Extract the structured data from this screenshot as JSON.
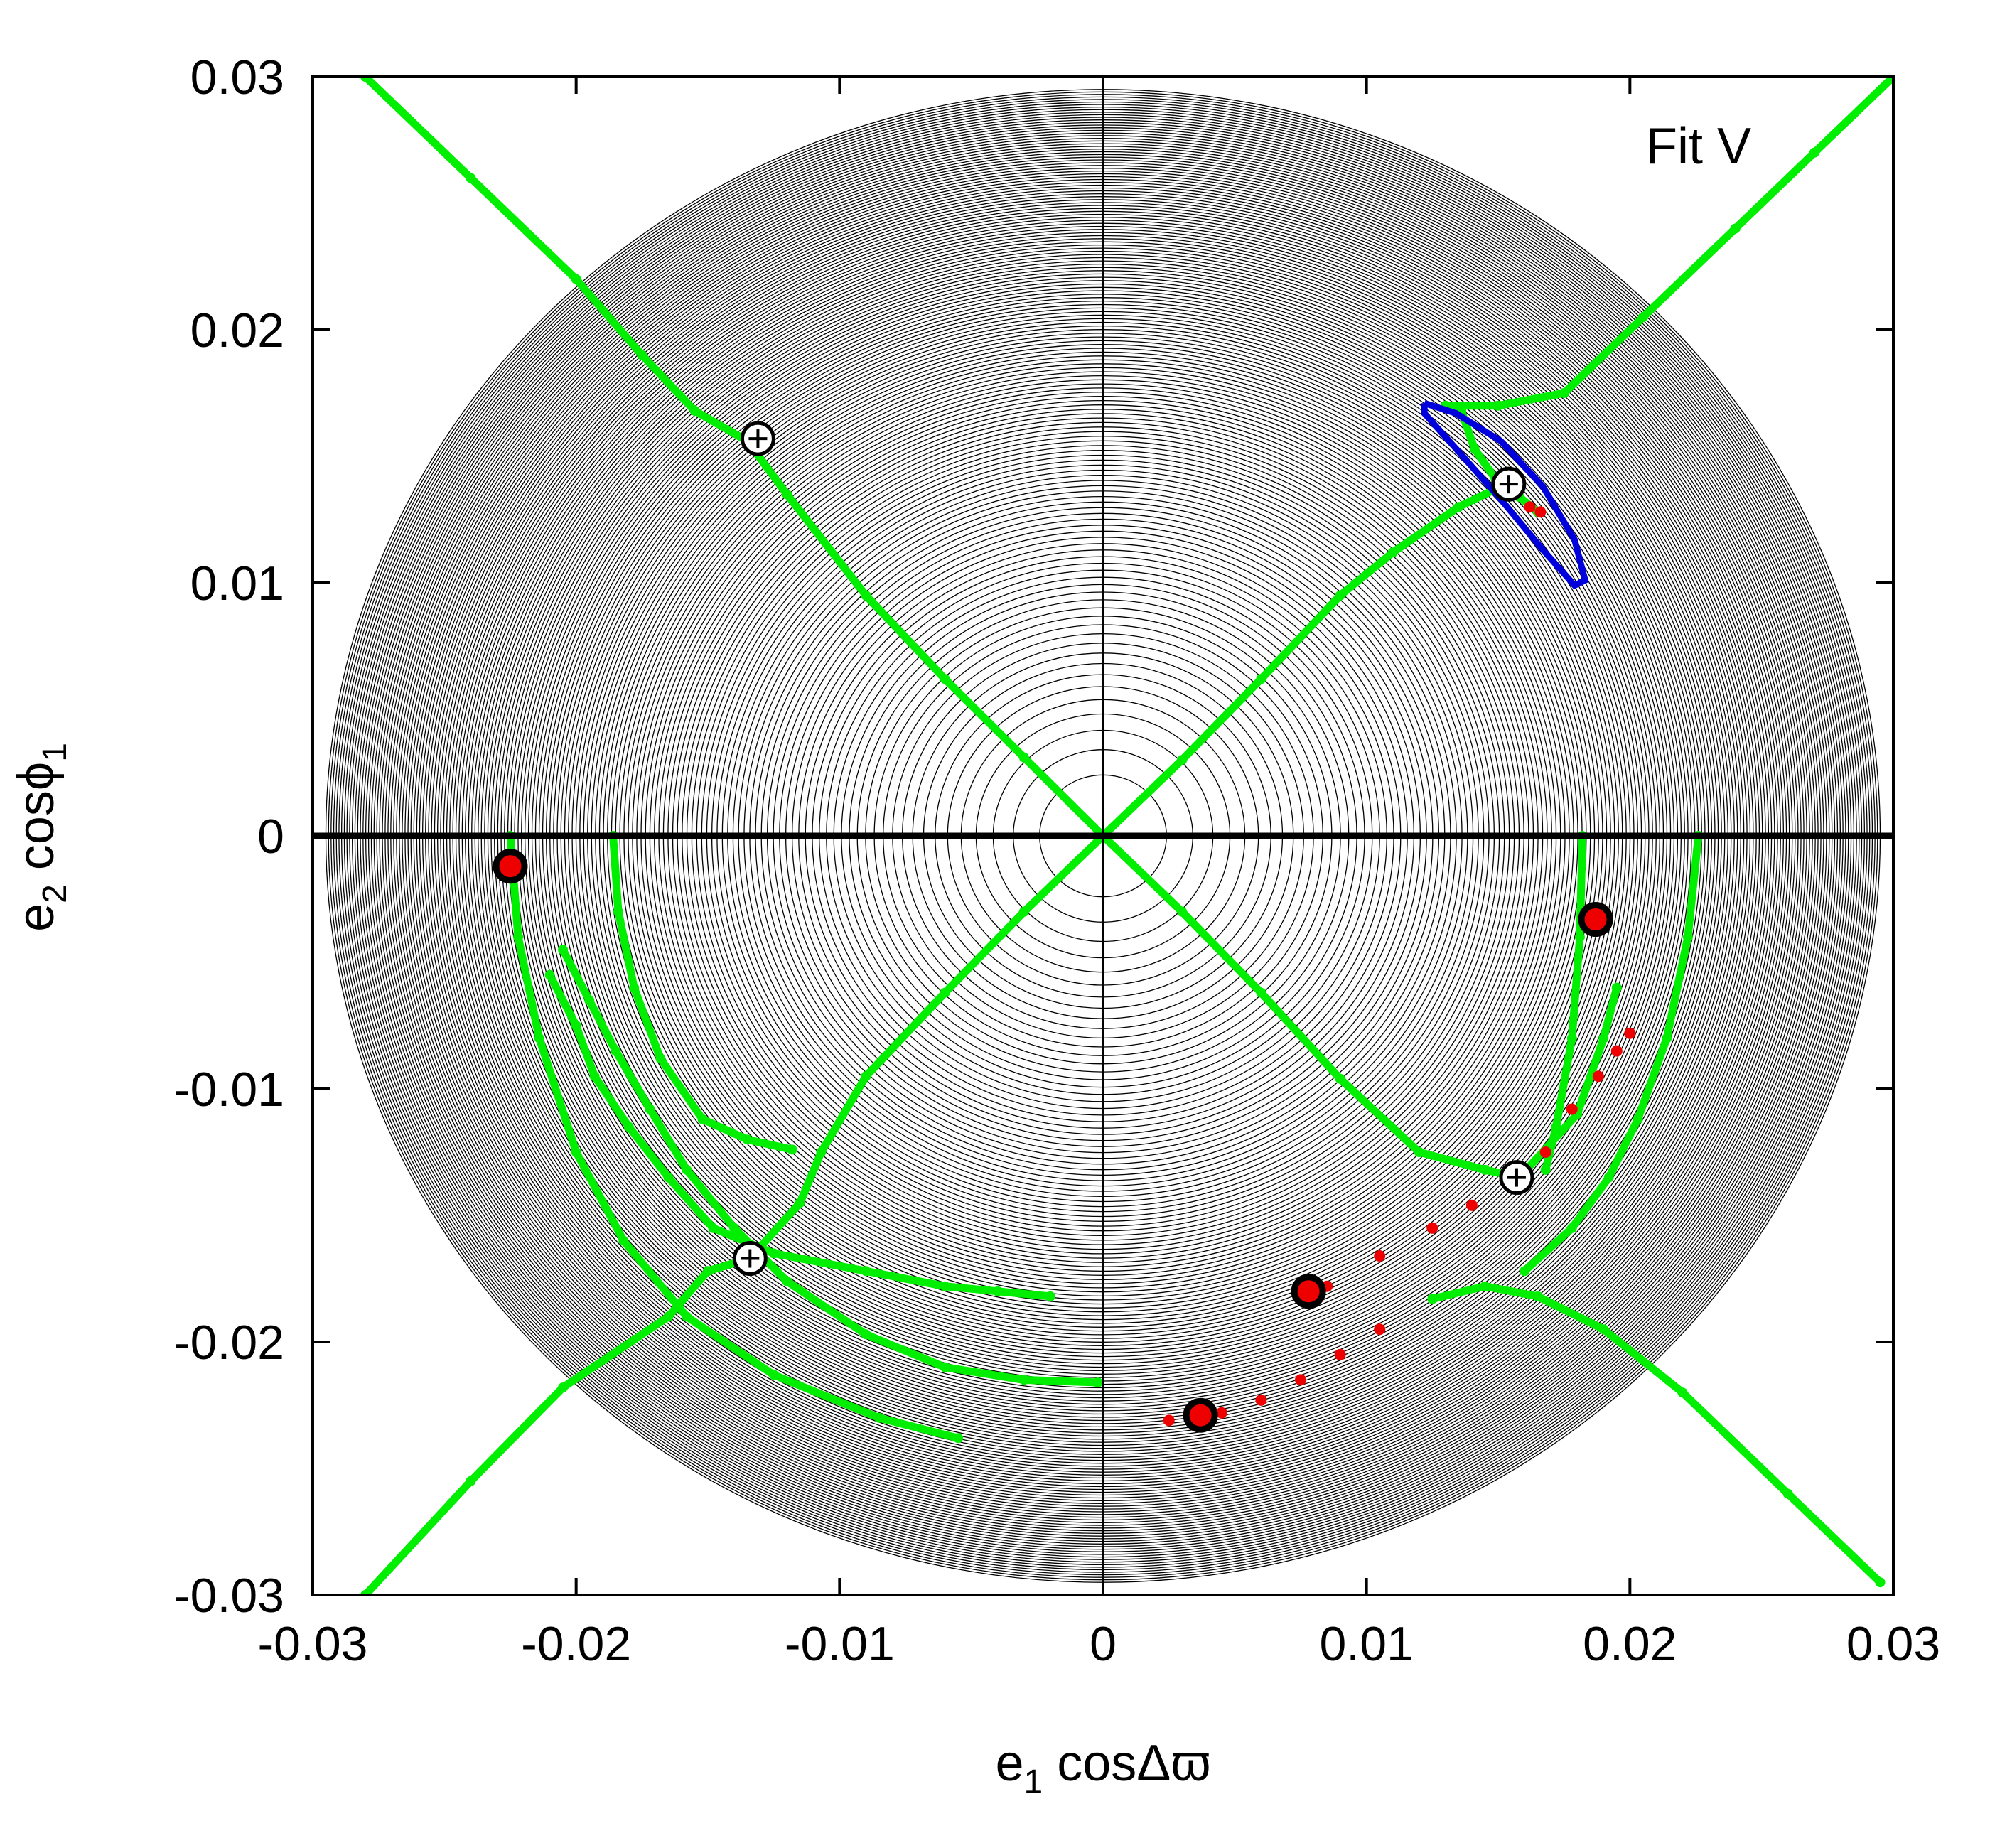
{
  "chart_data": {
    "type": "scatter",
    "annotation": "Fit V",
    "xlabel": {
      "main": "e",
      "sub": "1",
      "rest": " cosΔϖ"
    },
    "ylabel": {
      "main": "e",
      "sub": "2",
      "rest": " cosϕ",
      "sub2": "1"
    },
    "xlim": [
      -0.03,
      0.03
    ],
    "ylim": [
      -0.03,
      0.03
    ],
    "xticks": [
      -0.03,
      -0.02,
      -0.01,
      0,
      0.01,
      0.02,
      0.03
    ],
    "yticks": [
      -0.03,
      -0.02,
      -0.01,
      0,
      0.01,
      0.02,
      0.03
    ],
    "xtick_labels": [
      "-0.03",
      "-0.02",
      "-0.01",
      "0",
      "0.01",
      "0.02",
      "0.03"
    ],
    "ytick_labels": [
      "-0.03",
      "-0.02",
      "-0.01",
      "0",
      "0.01",
      "0.02",
      "0.03"
    ],
    "grid": false,
    "colors": {
      "contour": "#000000",
      "green": "#00ee00",
      "blue": "#0000dd",
      "red": "#ee0000"
    },
    "contour_disk_radius": 0.0295,
    "series": [
      {
        "color": "green",
        "style": "dots",
        "points": [
          [
            -0.028,
            0.03
          ],
          [
            -0.024,
            0.026
          ],
          [
            -0.02,
            0.022
          ],
          [
            -0.0175,
            0.019
          ],
          [
            -0.0155,
            0.0168
          ],
          [
            -0.0135,
            0.0156
          ],
          [
            -0.012,
            0.0135
          ],
          [
            -0.009,
            0.0095
          ],
          [
            -0.006,
            0.0062
          ],
          [
            -0.003,
            0.0031
          ],
          [
            0,
            0
          ],
          [
            0.003,
            -0.003
          ],
          [
            0.006,
            -0.0062
          ],
          [
            0.009,
            -0.0096
          ],
          [
            0.012,
            -0.0125
          ],
          [
            0.0145,
            -0.0132
          ],
          [
            0.0158,
            -0.0135
          ],
          [
            0.018,
            -0.011
          ],
          [
            0.019,
            -0.008
          ],
          [
            0.0195,
            -0.006
          ]
        ]
      },
      {
        "color": "green",
        "style": "dots",
        "points": [
          [
            -0.028,
            -0.03
          ],
          [
            -0.024,
            -0.0255
          ],
          [
            -0.0205,
            -0.0218
          ],
          [
            -0.0165,
            -0.019
          ],
          [
            -0.015,
            -0.0172
          ],
          [
            -0.0134,
            -0.0167
          ],
          [
            -0.0115,
            -0.0145
          ],
          [
            -0.0107,
            -0.0125
          ],
          [
            -0.009,
            -0.0095
          ],
          [
            -0.006,
            -0.0062
          ],
          [
            -0.003,
            -0.003
          ],
          [
            0,
            0
          ],
          [
            0.003,
            0.003
          ],
          [
            0.006,
            0.0062
          ],
          [
            0.009,
            0.0095
          ],
          [
            0.011,
            0.0112
          ],
          [
            0.0135,
            0.013
          ],
          [
            0.0155,
            0.014
          ]
        ]
      },
      {
        "color": "green",
        "style": "dots",
        "points": [
          [
            0.013,
            0.017
          ],
          [
            0.015,
            0.017
          ],
          [
            0.0175,
            0.0175
          ],
          [
            0.0205,
            0.0205
          ],
          [
            0.024,
            0.024
          ],
          [
            0.027,
            0.027
          ],
          [
            0.03,
            0.03
          ]
        ]
      },
      {
        "color": "green",
        "style": "dots",
        "points": [
          [
            0.0125,
            -0.0183
          ],
          [
            0.0145,
            -0.0178
          ],
          [
            0.0165,
            -0.0182
          ],
          [
            0.019,
            -0.0195
          ],
          [
            0.022,
            -0.022
          ],
          [
            0.026,
            -0.026
          ],
          [
            0.0295,
            -0.0295
          ]
        ]
      },
      {
        "color": "green",
        "style": "dots",
        "points": [
          [
            0.0136,
            0.0168
          ],
          [
            0.0141,
            0.0153
          ],
          [
            0.0149,
            0.0141
          ],
          [
            0.0158,
            0.0134
          ],
          [
            0.0165,
            0.0128
          ]
        ]
      },
      {
        "color": "green",
        "style": "dots",
        "points": [
          [
            -0.0186,
            0
          ],
          [
            -0.0184,
            -0.003
          ],
          [
            -0.0178,
            -0.006
          ],
          [
            -0.0168,
            -0.0088
          ],
          [
            -0.0152,
            -0.0112
          ],
          [
            -0.0135,
            -0.012
          ],
          [
            -0.0118,
            -0.0124
          ]
        ]
      },
      {
        "color": "green",
        "style": "dots",
        "points": [
          [
            -0.0225,
            0
          ],
          [
            -0.0222,
            -0.004
          ],
          [
            -0.0214,
            -0.008
          ],
          [
            -0.02,
            -0.0125
          ],
          [
            -0.0182,
            -0.016
          ],
          [
            -0.0158,
            -0.019
          ],
          [
            -0.0125,
            -0.0213
          ],
          [
            -0.0085,
            -0.023
          ],
          [
            -0.0055,
            -0.0238
          ]
        ]
      },
      {
        "color": "green",
        "style": "dots",
        "points": [
          [
            -0.021,
            -0.0055
          ],
          [
            -0.02,
            -0.0075
          ],
          [
            -0.0193,
            -0.0095
          ],
          [
            -0.018,
            -0.0115
          ],
          [
            -0.0165,
            -0.0135
          ],
          [
            -0.0148,
            -0.0155
          ],
          [
            -0.0125,
            -0.0165
          ],
          [
            -0.009,
            -0.0172
          ],
          [
            -0.006,
            -0.0178
          ],
          [
            -0.004,
            -0.018
          ],
          [
            -0.002,
            -0.0182
          ]
        ]
      },
      {
        "color": "green",
        "style": "dots",
        "points": [
          [
            -0.0205,
            -0.0045
          ],
          [
            -0.0195,
            -0.0065
          ],
          [
            -0.0185,
            -0.0085
          ],
          [
            -0.0172,
            -0.0108
          ],
          [
            -0.0158,
            -0.0132
          ],
          [
            -0.014,
            -0.0155
          ],
          [
            -0.012,
            -0.0176
          ],
          [
            -0.009,
            -0.0197
          ],
          [
            -0.006,
            -0.021
          ],
          [
            -0.003,
            -0.0215
          ],
          [
            -0.0002,
            -0.0216
          ]
        ]
      },
      {
        "color": "green",
        "style": "dots",
        "points": [
          [
            0.0182,
            0
          ],
          [
            0.0181,
            -0.004
          ],
          [
            0.0178,
            -0.008
          ],
          [
            0.0172,
            -0.0115
          ],
          [
            0.0168,
            -0.0132
          ]
        ]
      },
      {
        "color": "green",
        "style": "dots",
        "points": [
          [
            0.0226,
            0
          ],
          [
            0.0222,
            -0.004
          ],
          [
            0.0214,
            -0.008
          ],
          [
            0.0203,
            -0.0112
          ],
          [
            0.0192,
            -0.0135
          ],
          [
            0.0178,
            -0.0155
          ],
          [
            0.016,
            -0.0172
          ]
        ]
      },
      {
        "color": "blue",
        "style": "line",
        "points": [
          [
            0.0122,
            0.0171
          ],
          [
            0.0134,
            0.0167
          ],
          [
            0.0151,
            0.0156
          ],
          [
            0.0167,
            0.0138
          ],
          [
            0.0179,
            0.0117
          ],
          [
            0.0183,
            0.0101
          ],
          [
            0.0179,
            0.0099
          ],
          [
            0.0167,
            0.0113
          ],
          [
            0.0151,
            0.0133
          ],
          [
            0.0134,
            0.0153
          ],
          [
            0.0122,
            0.0167
          ],
          [
            0.0122,
            0.0171
          ]
        ]
      },
      {
        "color": "red",
        "style": "dots",
        "points": [
          [
            0.0162,
            0.013
          ],
          [
            0.0166,
            0.0128
          ]
        ]
      },
      {
        "color": "red",
        "style": "dots",
        "points": [
          [
            0.0085,
            -0.0178
          ],
          [
            0.0105,
            -0.0166
          ],
          [
            0.0125,
            -0.0155
          ],
          [
            0.014,
            -0.0146
          ],
          [
            0.0155,
            -0.0137
          ],
          [
            0.0168,
            -0.0125
          ],
          [
            0.0178,
            -0.0108
          ],
          [
            0.0188,
            -0.0095
          ],
          [
            0.0195,
            -0.0085
          ],
          [
            0.02,
            -0.0078
          ],
          [
            0.0025,
            -0.0231
          ],
          [
            0.0045,
            -0.0228
          ],
          [
            0.006,
            -0.0223
          ],
          [
            0.0075,
            -0.0215
          ],
          [
            0.009,
            -0.0205
          ],
          [
            0.0105,
            -0.0195
          ]
        ]
      },
      {
        "color": "red",
        "style": "markers",
        "points": [
          [
            -0.0225,
            -0.0012
          ],
          [
            0.0187,
            -0.0033
          ],
          [
            0.0078,
            -0.018
          ],
          [
            0.0037,
            -0.0229
          ]
        ]
      },
      {
        "color": "black",
        "style": "crosshair",
        "points": [
          [
            -0.0131,
            0.0157
          ],
          [
            0.0154,
            0.0139
          ],
          [
            0.0157,
            -0.0135
          ],
          [
            -0.0134,
            -0.0167
          ]
        ]
      }
    ]
  }
}
